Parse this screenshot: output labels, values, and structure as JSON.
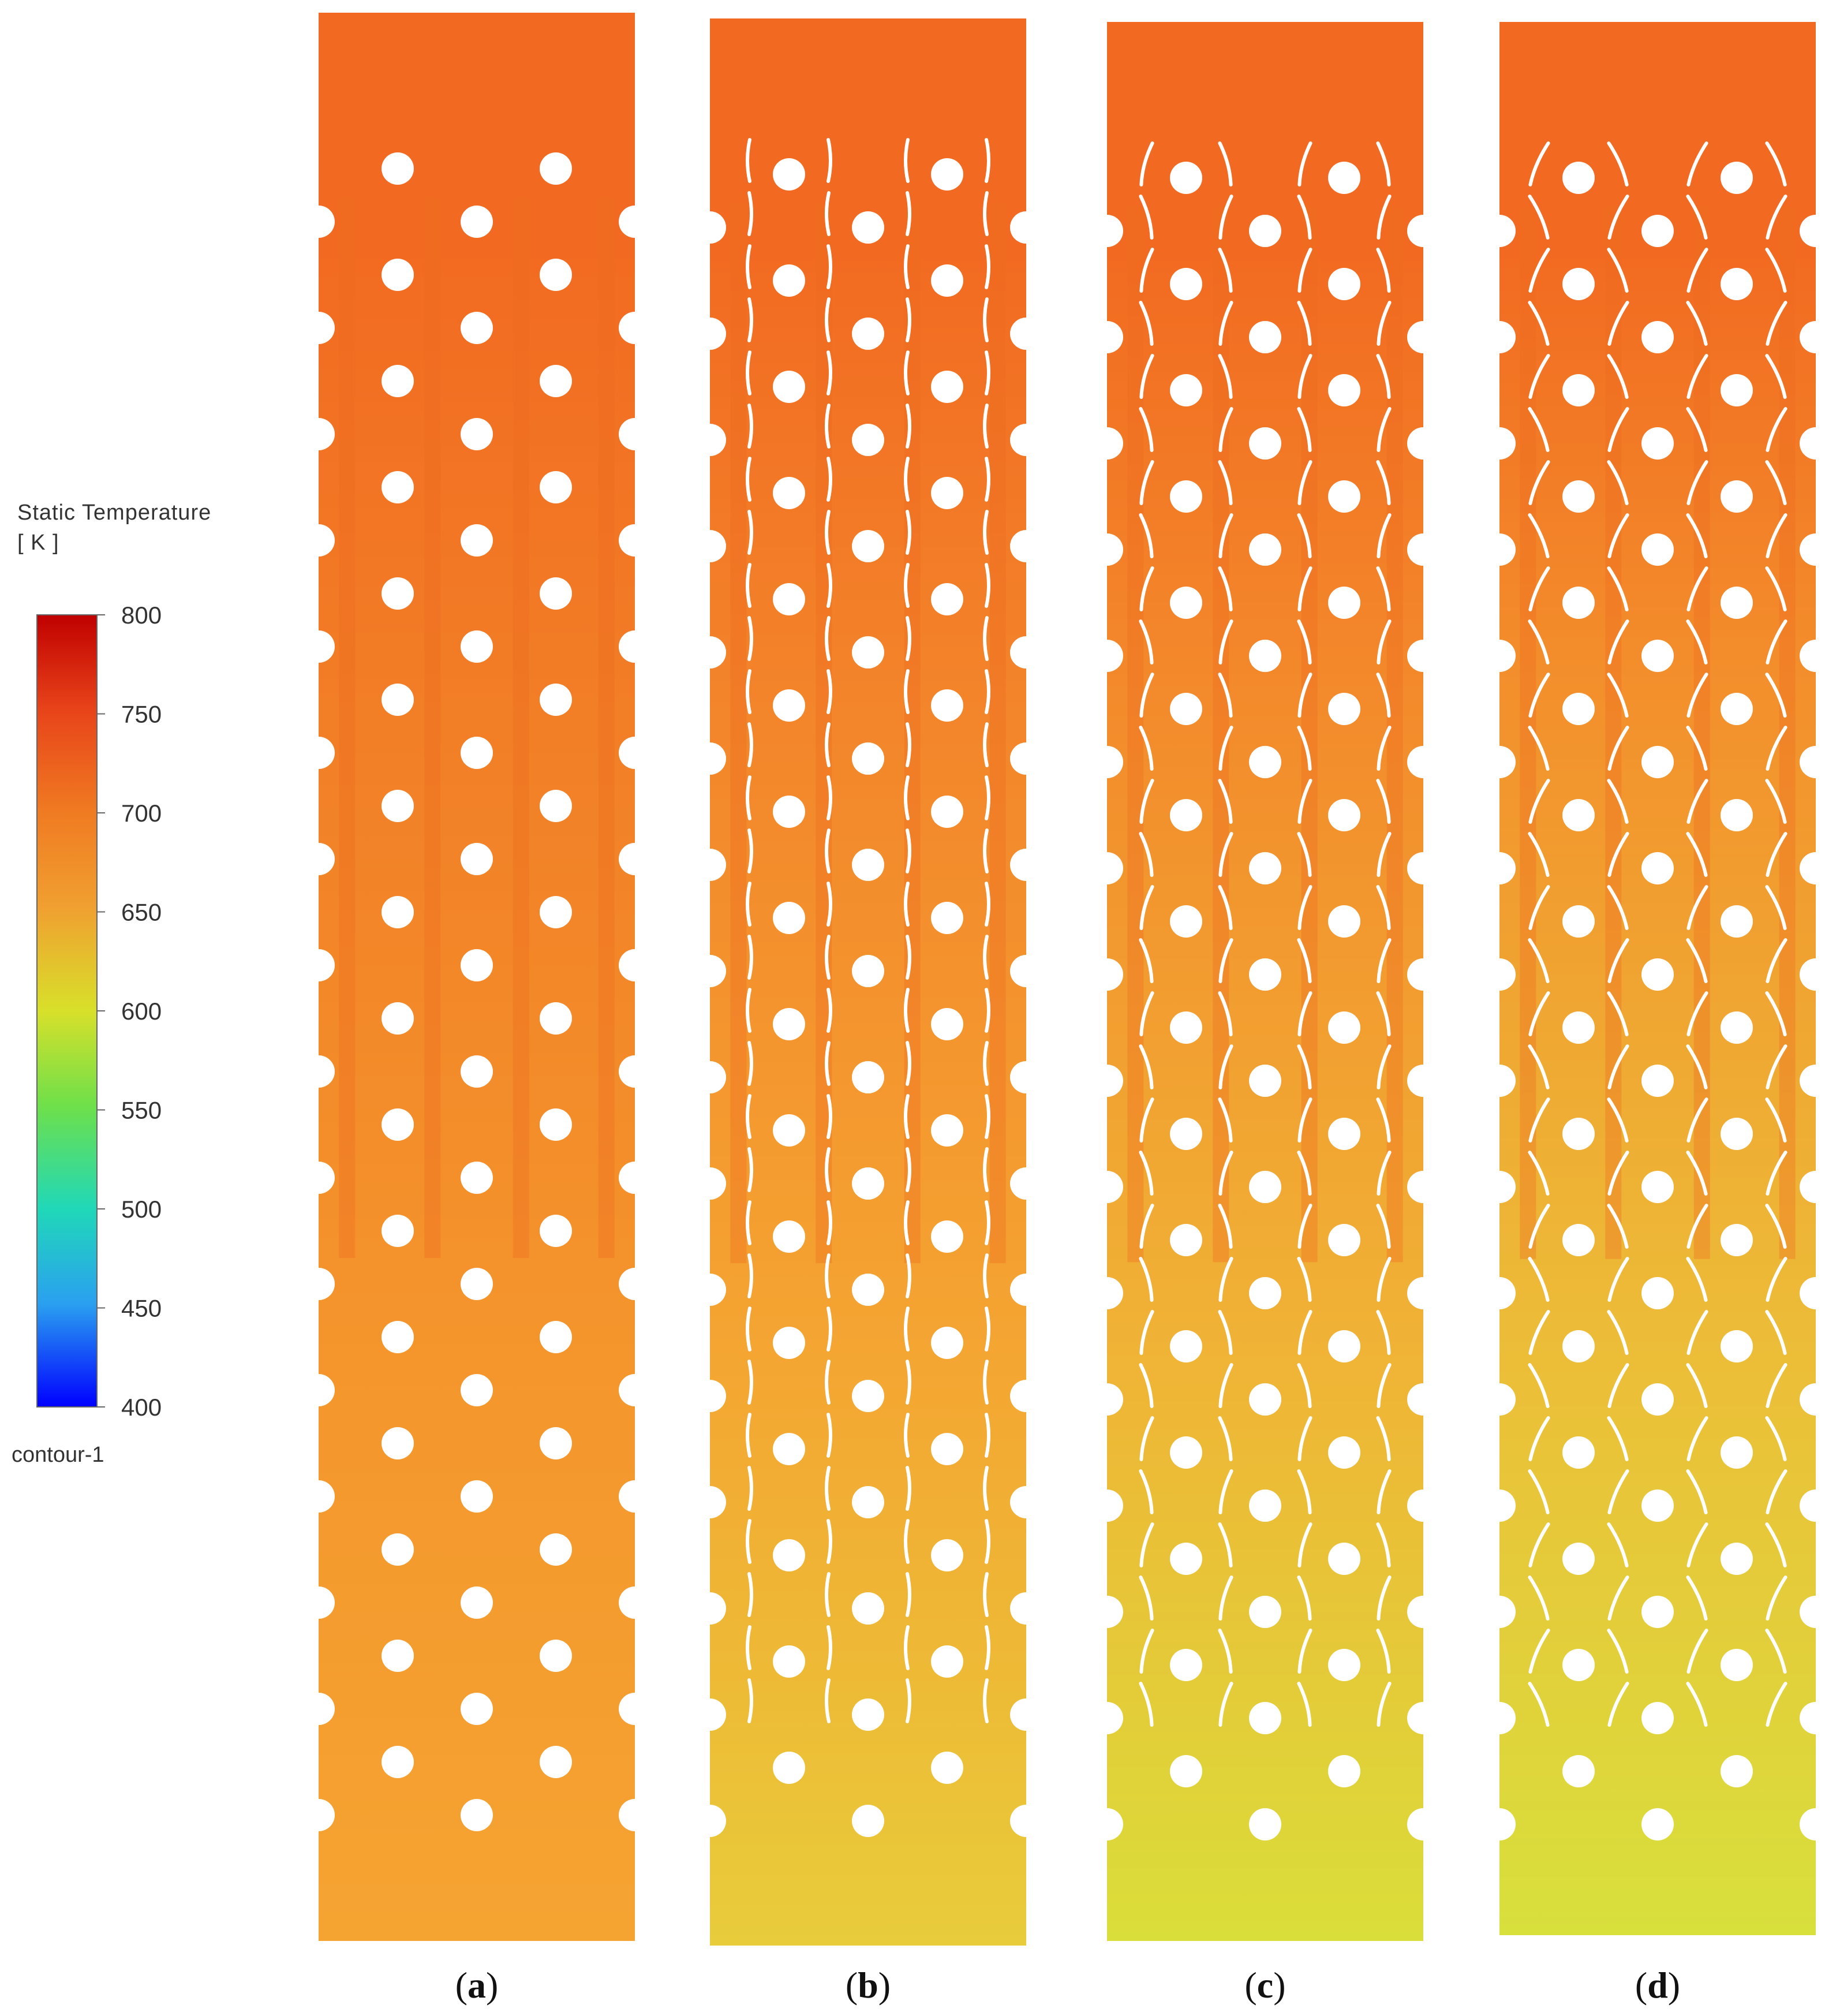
{
  "legend": {
    "title_line1": "Static Temperature",
    "title_line2": "[ K ]",
    "ticks": [
      "800",
      "750",
      "700",
      "650",
      "600",
      "550",
      "500",
      "450",
      "400"
    ],
    "footer": "contour-1",
    "colors": [
      "#c00000",
      "#e8441a",
      "#f07b22",
      "#f0a030",
      "#d8e02a",
      "#6ee04a",
      "#20d8b8",
      "#2aa0f0",
      "#0000ff"
    ]
  },
  "panels": [
    {
      "id": "a",
      "label": "a",
      "baffles": "none"
    },
    {
      "id": "b",
      "label": "b",
      "baffles": "vertical arcs"
    },
    {
      "id": "c",
      "label": "c",
      "baffles": "tilted arcs"
    },
    {
      "id": "d",
      "label": "d",
      "baffles": "strongly tilted arcs"
    }
  ],
  "field_colors": {
    "inlet": "#f26a21",
    "stream_hot": "#ef6f22",
    "mid": "#f4962c",
    "outlet_a": "#f5a030",
    "outlet_d": "#d8e03a",
    "holes": "#ffffff"
  }
}
